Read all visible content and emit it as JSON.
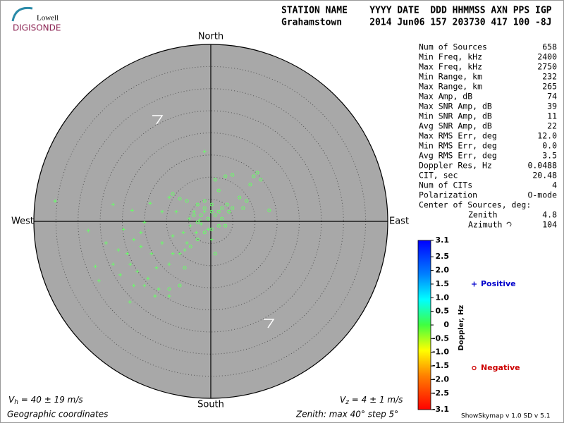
{
  "chart_data": {
    "type": "skymap",
    "logo": {
      "top": "Lowell",
      "bottom": "DIGISONDE"
    },
    "header": {
      "labels": "STATION NAME    YYYY DATE  DDD HHMMSS AXN PPS IGP",
      "values": "Grahamstown     2014 Jun06 157 203730 417 100 -8J"
    },
    "directions": {
      "north": "North",
      "south": "South",
      "east": "East",
      "west": "West"
    },
    "rmax": 40,
    "ring_step": 5,
    "plot_color": "#a8a8a8",
    "stats": [
      [
        "Num of Sources",
        "658"
      ],
      [
        "Min Freq, kHz",
        "2400"
      ],
      [
        "Max Freq, kHz",
        "2750"
      ],
      [
        "Min Range, km",
        "232"
      ],
      [
        "Max Range, km",
        "265"
      ],
      [
        "Max Amp, dB",
        "74"
      ],
      [
        "Max SNR Amp, dB",
        "39"
      ],
      [
        "Min SNR Amp, dB",
        "11"
      ],
      [
        "Avg SNR Amp, dB",
        "22"
      ],
      [
        "Max RMS Err, deg",
        "12.0"
      ],
      [
        "Min RMS Err, deg",
        "0.0"
      ],
      [
        "Avg RMS Err, deg",
        "3.5"
      ],
      [
        "Doppler Res, Hz",
        "0.0488"
      ],
      [
        "CIT, sec",
        "20.48"
      ],
      [
        "Num of CITs",
        "4"
      ],
      [
        "Polarization",
        "O-mode"
      ]
    ],
    "center_title": "Center of Sources, deg:",
    "center": [
      [
        "Zenith",
        "4.8"
      ],
      [
        "Azimuth",
        "104"
      ]
    ],
    "colorbar": {
      "label": "Doppler, Hz",
      "clim": [
        -3.1,
        3.1
      ],
      "ticks": [
        3.1,
        2.5,
        {
          "value": 2,
          "label": "2.0"
        },
        1.5,
        {
          "value": 1,
          "label": "1.0"
        },
        0.5,
        0,
        -0.5,
        {
          "value": -1,
          "label": "-1.0"
        },
        -1.5,
        {
          "value": -2,
          "label": "-2.0"
        },
        -2.5,
        -3.1
      ]
    },
    "series": [
      {
        "name": "Positive",
        "marker": "plus",
        "color": "#0000cc",
        "marker_color": "#66ff66",
        "x": [
          -35.2,
          -22.1,
          -27.7,
          -1.4,
          -17.8,
          -15.0,
          -19.7,
          -17.4,
          -20.9,
          -18.9,
          -15.8,
          -13.4,
          -11.0,
          -8.6,
          -6.2,
          -4.6,
          -18.2,
          -16.6,
          -14.2,
          -12.3,
          -9.4,
          -7.0,
          -22.1,
          -26.1,
          -20.5,
          -15.0,
          -11.8,
          -25.3,
          -18.3,
          -9.4,
          -23.7,
          -11.0,
          -7.8,
          -5.4,
          -2.5,
          -1.4,
          -3.8,
          -4.9,
          -5.9,
          -12.6,
          -15.8,
          -13.7,
          -9.4,
          -8.6,
          -17.4,
          -2.2,
          -0.6,
          -3.3,
          0.2
        ],
        "y": [
          4.6,
          3.8,
          -2.1,
          15.8,
          2.5,
          -0.2,
          -1.8,
          -4.1,
          -6.5,
          -7.3,
          -5.7,
          -7.3,
          -4.9,
          -3.3,
          -2.5,
          -1.0,
          -9.7,
          -11.3,
          -12.9,
          -10.5,
          -9.7,
          -7.3,
          -9.7,
          -10.2,
          -12.1,
          -14.5,
          -15.3,
          -13.4,
          -18.2,
          -16.9,
          -4.9,
          2.2,
          2.2,
          -4.9,
          0.3,
          2.2,
          2.2,
          0.6,
          -6.5,
          -16.9,
          -2.5,
          4.1,
          5.4,
          -7.3,
          -14.5,
          -0.6,
          -1.8,
          -2.5,
          -4.1
        ]
      },
      {
        "name": "Negative",
        "marker": "circle",
        "color": "#cc0000",
        "marker_color": "#66ff66",
        "x": [
          1.0,
          3.3,
          4.9,
          9.7,
          10.5,
          11.3,
          8.9,
          6.5,
          3.7,
          1.8,
          2.5,
          4.9,
          7.3,
          8.1,
          13.2,
          0.2,
          -1.4,
          -3.0,
          -3.8,
          -2.2,
          -0.6,
          1.0,
          2.5,
          1.8,
          0.2,
          -1.4,
          -3.0,
          -4.6,
          -7.0,
          -5.9,
          -9.4,
          1.0,
          3.3,
          4.1,
          -5.4,
          -7.0,
          -8.6,
          -1.4,
          0.2,
          1.8,
          -3.0
        ],
        "y": [
          9.4,
          10.2,
          10.5,
          10.2,
          11.0,
          9.4,
          8.3,
          5.4,
          3.8,
          7.0,
          3.0,
          3.0,
          3.0,
          4.6,
          2.5,
          3.8,
          3.0,
          3.8,
          1.4,
          1.4,
          0.6,
          1.4,
          0.6,
          -1.0,
          -1.8,
          -2.5,
          -4.1,
          -5.7,
          -14.5,
          -10.5,
          -15.3,
          -7.3,
          -1.0,
          2.2,
          4.6,
          5.1,
          6.2,
          4.6,
          2.2,
          2.2,
          -0.2
        ]
      }
    ],
    "vh": {
      "symbol": "V",
      "sub": "h",
      "text": " = 40 ± 19 m/s"
    },
    "vz": {
      "symbol": "V",
      "sub": "z",
      "text": " = 4 ± 1 m/s"
    },
    "coords": "Geographic coordinates",
    "zenith_note": "Zenith: max 40°  step 5°",
    "version": "ShowSkymap v 1.0  SD v 5.1"
  }
}
